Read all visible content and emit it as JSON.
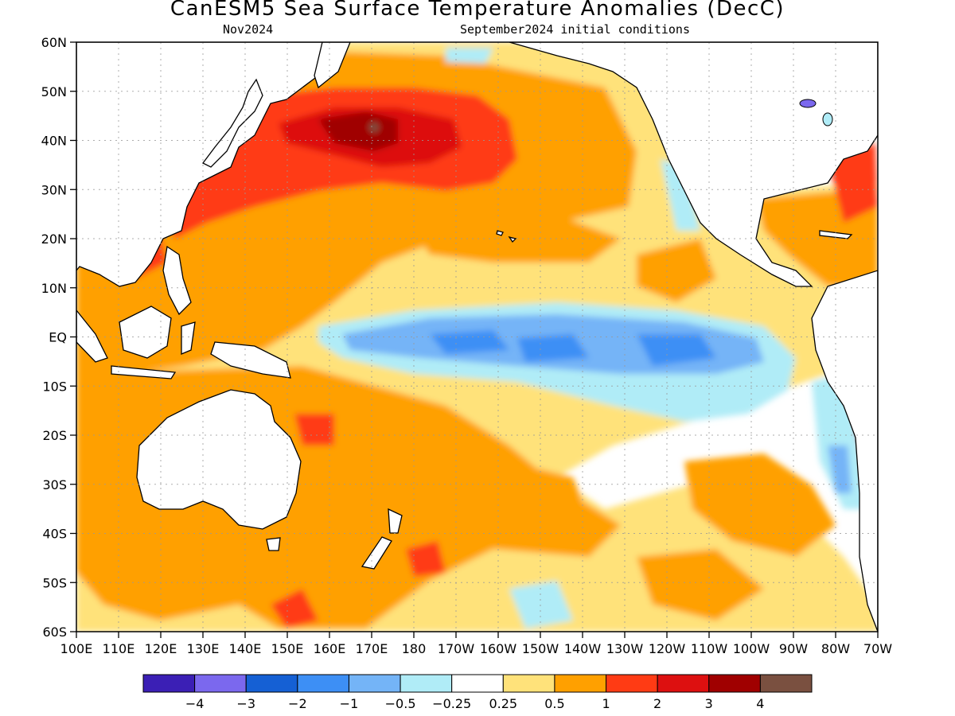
{
  "header": {
    "title": "CanESM5 Sea Surface Temperature Anomalies (DecC)",
    "valid_month": "Nov2024",
    "init_conditions": "September2024 initial conditions"
  },
  "map": {
    "lat_labels": [
      "60N",
      "50N",
      "40N",
      "30N",
      "20N",
      "10N",
      "EQ",
      "10S",
      "20S",
      "30S",
      "40S",
      "50S",
      "60S"
    ],
    "lon_labels": [
      "100E",
      "110E",
      "120E",
      "130E",
      "140E",
      "150E",
      "160E",
      "170E",
      "180",
      "170W",
      "160W",
      "150W",
      "140W",
      "130W",
      "120W",
      "110W",
      "100W",
      "90W",
      "80W",
      "70W"
    ],
    "land_color": "#ffffff",
    "coastline_color": "#000000",
    "grid": "dotted"
  },
  "colorbar": {
    "colors": [
      "#3b1fb5",
      "#7b68ee",
      "#1560d4",
      "#3d8ff5",
      "#74b4f7",
      "#b0ecf7",
      "#ffffff",
      "#ffe27a",
      "#ffa000",
      "#ff3b14",
      "#dd1010",
      "#a00000",
      "#7a5040"
    ],
    "labels": [
      "-4",
      "-3",
      "-2",
      "-1",
      "-0.5",
      "-0.25",
      "0.25",
      "0.5",
      "1",
      "2",
      "3",
      "4"
    ]
  }
}
